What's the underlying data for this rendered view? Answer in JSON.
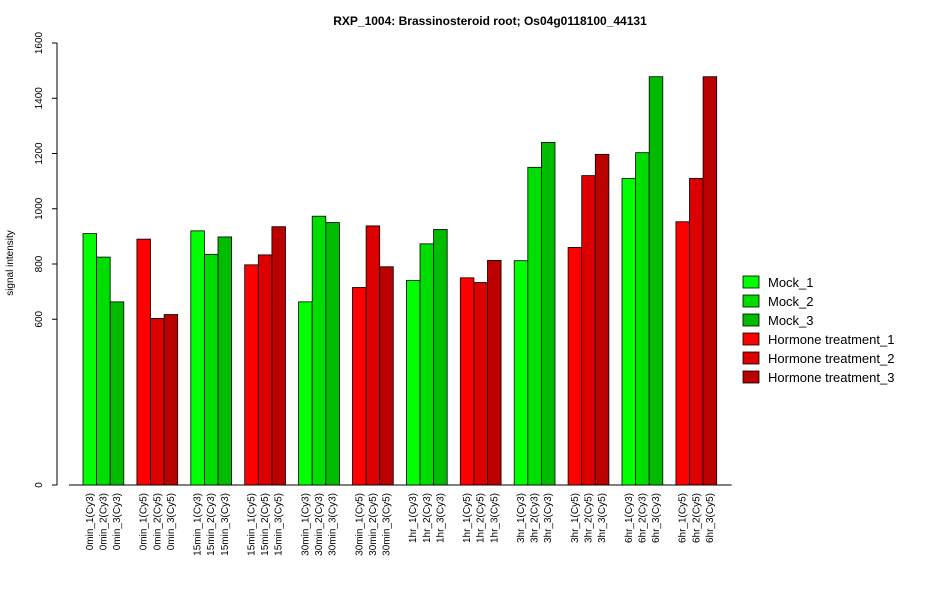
{
  "chart_data": {
    "type": "bar",
    "title": "RXP_1004: Brassinosteroid root; Os04g0118100_44131",
    "xlabel": "",
    "ylabel": "signal intensity",
    "yticks": [
      0,
      600,
      800,
      1000,
      1200,
      1400,
      1600
    ],
    "ylim": [
      0,
      1600
    ],
    "grid": false,
    "legend_position": "right",
    "colors": {
      "Mock_1": "#00ff00",
      "Mock_2": "#00dd00",
      "Mock_3": "#00bb00",
      "Hormone treatment_1": "#ff0000",
      "Hormone treatment_2": "#dd0000",
      "Hormone treatment_3": "#bb0000"
    },
    "groups": [
      {
        "color_keys": [
          "Mock_1",
          "Mock_2",
          "Mock_3"
        ],
        "labels": [
          "0min_1(Cy3)",
          "0min_2(Cy3)",
          "0min_3(Cy3)"
        ],
        "values": [
          910,
          825,
          663
        ]
      },
      {
        "color_keys": [
          "Hormone treatment_1",
          "Hormone treatment_2",
          "Hormone treatment_3"
        ],
        "labels": [
          "0min_1(Cy5)",
          "0min_2(Cy5)",
          "0min_3(Cy5)"
        ],
        "values": [
          890,
          603,
          617
        ]
      },
      {
        "color_keys": [
          "Mock_1",
          "Mock_2",
          "Mock_3"
        ],
        "labels": [
          "15min_1(Cy3)",
          "15min_2(Cy3)",
          "15min_3(Cy3)"
        ],
        "values": [
          920,
          835,
          898
        ]
      },
      {
        "color_keys": [
          "Hormone treatment_1",
          "Hormone treatment_2",
          "Hormone treatment_3"
        ],
        "labels": [
          "15min_1(Cy5)",
          "15min_2(Cy5)",
          "15min_3(Cy5)"
        ],
        "values": [
          797,
          833,
          935
        ]
      },
      {
        "color_keys": [
          "Mock_1",
          "Mock_2",
          "Mock_3"
        ],
        "labels": [
          "30min_1(Cy3)",
          "30min_2(Cy3)",
          "30min_3(Cy3)"
        ],
        "values": [
          663,
          973,
          950
        ]
      },
      {
        "color_keys": [
          "Hormone treatment_1",
          "Hormone treatment_2",
          "Hormone treatment_3"
        ],
        "labels": [
          "30min_1(Cy5)",
          "30min_2(Cy5)",
          "30min_3(Cy5)"
        ],
        "values": [
          715,
          938,
          790
        ]
      },
      {
        "color_keys": [
          "Mock_1",
          "Mock_2",
          "Mock_3"
        ],
        "labels": [
          "1hr_1(Cy3)",
          "1hr_2(Cy3)",
          "1hr_3(Cy3)"
        ],
        "values": [
          740,
          873,
          925
        ]
      },
      {
        "color_keys": [
          "Hormone treatment_1",
          "Hormone treatment_2",
          "Hormone treatment_3"
        ],
        "labels": [
          "1hr_1(Cy5)",
          "1hr_2(Cy5)",
          "1hr_3(Cy5)"
        ],
        "values": [
          750,
          733,
          813
        ]
      },
      {
        "color_keys": [
          "Mock_1",
          "Mock_2",
          "Mock_3"
        ],
        "labels": [
          "3hr_1(Cy3)",
          "3hr_2(Cy3)",
          "3hr_3(Cy3)"
        ],
        "values": [
          812,
          1150,
          1240
        ]
      },
      {
        "color_keys": [
          "Hormone treatment_1",
          "Hormone treatment_2",
          "Hormone treatment_3"
        ],
        "labels": [
          "3hr_1(Cy5)",
          "3hr_2(Cy5)",
          "3hr_3(Cy5)"
        ],
        "values": [
          860,
          1120,
          1197
        ]
      },
      {
        "color_keys": [
          "Mock_1",
          "Mock_2",
          "Mock_3"
        ],
        "labels": [
          "6hr_1(Cy3)",
          "6hr_2(Cy3)",
          "6hr_3(Cy3)"
        ],
        "values": [
          1110,
          1203,
          1478
        ]
      },
      {
        "color_keys": [
          "Hormone treatment_1",
          "Hormone treatment_2",
          "Hormone treatment_3"
        ],
        "labels": [
          "6hr_1(Cy5)",
          "6hr_2(Cy5)",
          "6hr_3(Cy5)"
        ],
        "values": [
          953,
          1110,
          1478
        ]
      }
    ],
    "legend": [
      "Mock_1",
      "Mock_2",
      "Mock_3",
      "Hormone treatment_1",
      "Hormone treatment_2",
      "Hormone treatment_3"
    ]
  }
}
